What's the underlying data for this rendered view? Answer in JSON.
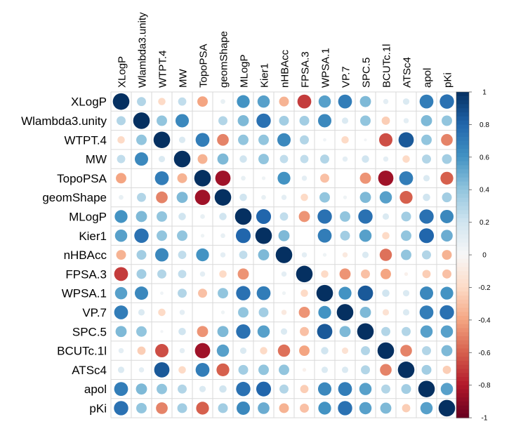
{
  "chart_data": {
    "type": "heatmap",
    "style": "correlation-circle-matrix",
    "variables": [
      "XLogP",
      "Wlambda3.unity",
      "WTPT.4",
      "MW",
      "TopoPSA",
      "geomShape",
      "MLogP",
      "Kier1",
      "nHBAcc",
      "FPSA.3",
      "WPSA.1",
      "VP.7",
      "SPC.5",
      "BCUTc.1l",
      "ATSc4",
      "apol",
      "pKi"
    ],
    "matrix": [
      [
        1.0,
        0.3,
        -0.2,
        0.25,
        -0.4,
        0.08,
        0.6,
        0.55,
        -0.35,
        -0.7,
        0.55,
        0.7,
        0.45,
        0.1,
        0.15,
        0.7,
        0.75
      ],
      [
        0.3,
        1.0,
        0.4,
        0.65,
        0.0,
        0.3,
        0.45,
        0.75,
        0.35,
        0.35,
        0.65,
        0.15,
        0.4,
        -0.25,
        0.1,
        0.45,
        0.4
      ],
      [
        -0.2,
        0.4,
        1.0,
        0.15,
        0.7,
        -0.5,
        0.4,
        0.4,
        0.65,
        0.3,
        0.04,
        -0.2,
        0.03,
        -0.65,
        0.85,
        0.4,
        -0.5
      ],
      [
        0.25,
        0.65,
        0.15,
        1.0,
        -0.35,
        0.45,
        0.2,
        0.4,
        0.25,
        0.25,
        0.3,
        0.1,
        0.2,
        0.1,
        -0.2,
        0.3,
        0.35
      ],
      [
        -0.4,
        0.0,
        0.7,
        -0.35,
        1.0,
        -0.85,
        0.08,
        0.05,
        0.6,
        0.1,
        -0.3,
        0.0,
        -0.45,
        -0.85,
        0.7,
        0.15,
        -0.6
      ],
      [
        0.08,
        0.3,
        -0.5,
        0.45,
        -0.85,
        1.0,
        0.2,
        0.08,
        0.1,
        -0.2,
        0.4,
        0.05,
        0.45,
        0.55,
        -0.6,
        0.2,
        0.35
      ],
      [
        0.6,
        0.45,
        0.4,
        0.2,
        0.08,
        0.2,
        1.0,
        0.8,
        0.25,
        -0.45,
        0.75,
        0.4,
        0.75,
        0.15,
        0.35,
        0.75,
        0.65
      ],
      [
        0.55,
        0.75,
        0.4,
        0.4,
        0.05,
        0.08,
        0.8,
        1.0,
        0.45,
        0.0,
        0.7,
        0.35,
        0.55,
        -0.2,
        0.4,
        0.8,
        0.5
      ],
      [
        -0.35,
        0.35,
        0.65,
        0.25,
        0.6,
        0.1,
        0.25,
        0.45,
        1.0,
        0.1,
        0.05,
        -0.1,
        0.15,
        -0.55,
        0.4,
        0.3,
        -0.35
      ],
      [
        -0.7,
        0.35,
        0.3,
        0.25,
        0.1,
        -0.2,
        -0.45,
        0.0,
        0.1,
        1.0,
        -0.2,
        -0.45,
        -0.3,
        -0.4,
        -0.05,
        -0.25,
        -0.3
      ],
      [
        0.55,
        0.65,
        0.04,
        0.3,
        -0.3,
        0.4,
        0.75,
        0.7,
        0.05,
        -0.2,
        1.0,
        0.6,
        0.85,
        0.2,
        0.15,
        0.65,
        0.6
      ],
      [
        0.7,
        0.15,
        -0.2,
        0.1,
        0.0,
        0.05,
        0.4,
        0.35,
        -0.1,
        -0.45,
        0.6,
        1.0,
        0.45,
        -0.15,
        0.15,
        0.7,
        0.75
      ],
      [
        0.45,
        0.4,
        0.03,
        0.2,
        -0.45,
        0.45,
        0.75,
        0.55,
        0.15,
        -0.3,
        0.85,
        0.45,
        1.0,
        0.3,
        0.3,
        0.55,
        0.55
      ],
      [
        0.1,
        -0.25,
        -0.65,
        0.1,
        -0.85,
        0.55,
        0.15,
        -0.2,
        -0.55,
        -0.4,
        0.2,
        -0.15,
        0.3,
        1.0,
        -0.5,
        0.3,
        0.45
      ],
      [
        0.15,
        0.1,
        0.85,
        -0.2,
        0.7,
        -0.6,
        0.35,
        0.4,
        0.4,
        -0.05,
        0.15,
        0.15,
        0.3,
        -0.5,
        1.0,
        0.35,
        -0.25
      ],
      [
        0.7,
        0.45,
        0.4,
        0.3,
        0.15,
        0.2,
        0.75,
        0.8,
        0.3,
        -0.25,
        0.65,
        0.7,
        0.55,
        0.3,
        0.35,
        1.0,
        0.55
      ],
      [
        0.75,
        0.4,
        -0.5,
        0.35,
        -0.6,
        0.35,
        0.65,
        0.5,
        -0.35,
        -0.3,
        0.6,
        0.75,
        0.55,
        0.45,
        -0.25,
        0.55,
        1.0
      ]
    ],
    "colorbar": {
      "range": [
        -1,
        1
      ],
      "ticks": [
        "1",
        "0.8",
        "0.6",
        "0.4",
        "0.2",
        "0",
        "-0.2",
        "-0.4",
        "-0.6",
        "-0.8",
        "-1"
      ]
    },
    "colors": {
      "positive": "#053061",
      "mid": "#f7f7f7",
      "negative": "#67001f",
      "grid": "#d9d9d9"
    }
  }
}
